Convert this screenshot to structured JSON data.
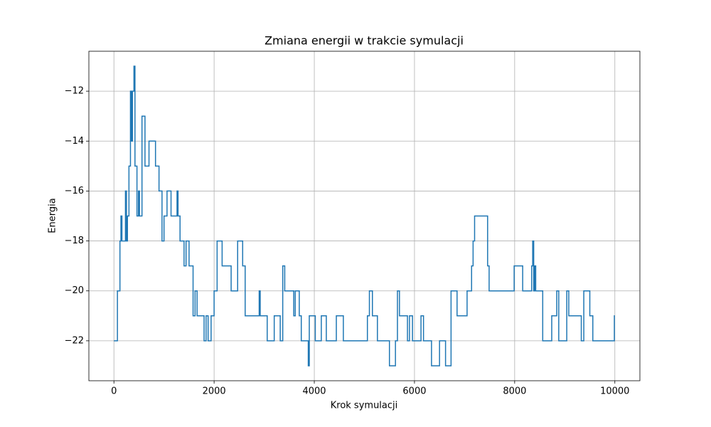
{
  "chart_data": {
    "type": "line",
    "title": "Zmiana energii w trakcie symulacji",
    "x_label": "Krok symulacji",
    "y_label": "Energia",
    "drawstyle": "steps-post",
    "grid": true,
    "xlim": [
      -500,
      10500
    ],
    "xticks": [
      0,
      2000,
      4000,
      6000,
      8000,
      10000
    ],
    "ylim": [
      -23.6,
      -10.4
    ],
    "yticks": [
      {
        "value": -22,
        "label": "−22"
      },
      {
        "value": -20,
        "label": "−20"
      },
      {
        "value": -18,
        "label": "−18"
      },
      {
        "value": -16,
        "label": "−16"
      },
      {
        "value": -14,
        "label": "−14"
      },
      {
        "value": -12,
        "label": "−12"
      }
    ],
    "series": [
      {
        "color": "#1f77b4",
        "x": [
          0,
          70,
          120,
          140,
          160,
          230,
          250,
          270,
          300,
          330,
          350,
          370,
          400,
          420,
          460,
          490,
          510,
          560,
          620,
          700,
          830,
          900,
          960,
          1000,
          1060,
          1140,
          1260,
          1280,
          1320,
          1400,
          1440,
          1500,
          1580,
          1620,
          1660,
          1800,
          1840,
          1880,
          1940,
          2000,
          2060,
          2160,
          2340,
          2470,
          2570,
          2620,
          2900,
          2920,
          3060,
          3200,
          3320,
          3370,
          3410,
          3590,
          3620,
          3700,
          3740,
          3880,
          3900,
          4020,
          4140,
          4240,
          4440,
          4580,
          5060,
          5100,
          5160,
          5260,
          5500,
          5620,
          5660,
          5700,
          5860,
          5900,
          5960,
          6130,
          6180,
          6340,
          6500,
          6620,
          6730,
          6850,
          7050,
          7140,
          7170,
          7200,
          7460,
          7490,
          7990,
          8160,
          8340,
          8360,
          8380,
          8400,
          8420,
          8560,
          8740,
          8840,
          8880,
          9040,
          9080,
          9330,
          9380,
          9500,
          9560,
          9990,
          10000
        ],
        "values": [
          -22,
          -20,
          -18,
          -17,
          -18,
          -16,
          -18,
          -17,
          -15,
          -12,
          -14,
          -12,
          -11,
          -15,
          -17,
          -16,
          -17,
          -13,
          -15,
          -14,
          -15,
          -16,
          -18,
          -17,
          -16,
          -17,
          -16,
          -17,
          -18,
          -19,
          -18,
          -19,
          -21,
          -20,
          -21,
          -22,
          -21,
          -22,
          -21,
          -20,
          -18,
          -19,
          -20,
          -18,
          -19,
          -21,
          -20,
          -21,
          -22,
          -21,
          -22,
          -19,
          -20,
          -21,
          -20,
          -21,
          -22,
          -23,
          -21,
          -22,
          -21,
          -22,
          -21,
          -22,
          -21,
          -20,
          -21,
          -22,
          -23,
          -22,
          -20,
          -21,
          -22,
          -21,
          -22,
          -21,
          -22,
          -23,
          -22,
          -23,
          -20,
          -21,
          -20,
          -19,
          -18,
          -17,
          -19,
          -20,
          -19,
          -20,
          -19,
          -18,
          -20,
          -19,
          -20,
          -22,
          -21,
          -20,
          -22,
          -20,
          -21,
          -22,
          -20,
          -21,
          -22,
          -21,
          -21
        ]
      }
    ]
  }
}
